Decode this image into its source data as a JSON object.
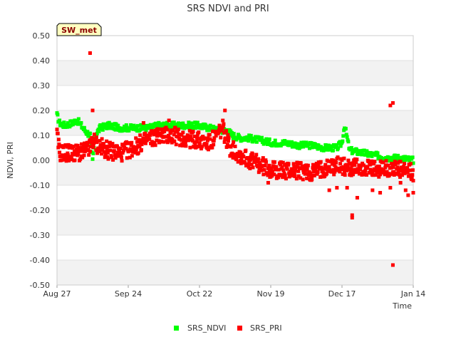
{
  "chart_data": {
    "type": "scatter",
    "title": "SRS NDVI and PRI",
    "badge": "SW_met",
    "xlabel": "Time",
    "ylabel": "NDVI, PRI",
    "x_range": [
      "2023-08-27",
      "2024-01-14"
    ],
    "x_ticks": [
      "Aug 27",
      "Sep 24",
      "Oct 22",
      "Nov 19",
      "Dec 17",
      "Jan 14"
    ],
    "ylim": [
      -0.5,
      0.5
    ],
    "y_ticks": [
      "0.50",
      "0.40",
      "0.30",
      "0.20",
      "0.10",
      "0.00",
      "-0.10",
      "-0.20",
      "-0.30",
      "-0.40",
      "-0.50"
    ],
    "grid": true,
    "legend": "bottom",
    "series": [
      {
        "name": "SRS_NDVI",
        "color": "#00ff00",
        "trend": [
          [
            0,
            0.18
          ],
          [
            1,
            0.15
          ],
          [
            3,
            0.14
          ],
          [
            6,
            0.15
          ],
          [
            8,
            0.16
          ],
          [
            11,
            0.12
          ],
          [
            13,
            0.1
          ],
          [
            14,
            0.0
          ],
          [
            15,
            0.1
          ],
          [
            17,
            0.13
          ],
          [
            20,
            0.14
          ],
          [
            25,
            0.13
          ],
          [
            30,
            0.13
          ],
          [
            36,
            0.13
          ],
          [
            40,
            0.14
          ],
          [
            45,
            0.14
          ],
          [
            50,
            0.14
          ],
          [
            55,
            0.14
          ],
          [
            60,
            0.13
          ],
          [
            64,
            0.12
          ],
          [
            67,
            0.12
          ],
          [
            69,
            0.1
          ],
          [
            72,
            0.09
          ],
          [
            75,
            0.09
          ],
          [
            80,
            0.08
          ],
          [
            85,
            0.07
          ],
          [
            90,
            0.07
          ],
          [
            95,
            0.06
          ],
          [
            100,
            0.06
          ],
          [
            105,
            0.05
          ],
          [
            108,
            0.05
          ],
          [
            110,
            0.05
          ],
          [
            112,
            0.07
          ],
          [
            113,
            0.14
          ],
          [
            115,
            0.04
          ],
          [
            120,
            0.03
          ],
          [
            125,
            0.02
          ],
          [
            130,
            0.01
          ],
          [
            135,
            0.01
          ],
          [
            140,
            0.0
          ]
        ]
      },
      {
        "name": "SRS_PRI",
        "color": "#ff0000",
        "trend": [
          [
            0,
            0.1
          ],
          [
            1,
            0.03
          ],
          [
            5,
            0.03
          ],
          [
            10,
            0.03
          ],
          [
            13,
            0.05
          ],
          [
            14,
            0.08
          ],
          [
            16,
            0.06
          ],
          [
            20,
            0.04
          ],
          [
            25,
            0.03
          ],
          [
            30,
            0.05
          ],
          [
            35,
            0.08
          ],
          [
            40,
            0.1
          ],
          [
            45,
            0.1
          ],
          [
            50,
            0.09
          ],
          [
            55,
            0.08
          ],
          [
            60,
            0.07
          ],
          [
            63,
            0.1
          ],
          [
            65,
            0.13
          ],
          [
            68,
            0.05
          ],
          [
            72,
            0.02
          ],
          [
            76,
            0.0
          ],
          [
            80,
            -0.02
          ],
          [
            85,
            -0.04
          ],
          [
            90,
            -0.04
          ],
          [
            95,
            -0.04
          ],
          [
            100,
            -0.05
          ],
          [
            105,
            -0.03
          ],
          [
            110,
            -0.02
          ],
          [
            115,
            -0.03
          ],
          [
            120,
            -0.03
          ],
          [
            125,
            -0.04
          ],
          [
            130,
            -0.03
          ],
          [
            135,
            -0.04
          ],
          [
            140,
            -0.05
          ]
        ],
        "outliers": [
          [
            13,
            0.43
          ],
          [
            14,
            0.2
          ],
          [
            34,
            0.15
          ],
          [
            44,
            0.16
          ],
          [
            66,
            0.2
          ],
          [
            83,
            -0.09
          ],
          [
            107,
            -0.12
          ],
          [
            110,
            -0.11
          ],
          [
            114,
            -0.11
          ],
          [
            118,
            -0.15
          ],
          [
            116,
            -0.22
          ],
          [
            116,
            -0.23
          ],
          [
            124,
            -0.12
          ],
          [
            127,
            -0.13
          ],
          [
            131,
            0.22
          ],
          [
            132,
            0.23
          ],
          [
            131,
            -0.11
          ],
          [
            132,
            -0.42
          ],
          [
            135,
            -0.09
          ],
          [
            137,
            -0.12
          ],
          [
            138,
            -0.14
          ],
          [
            140,
            -0.13
          ]
        ]
      }
    ]
  }
}
